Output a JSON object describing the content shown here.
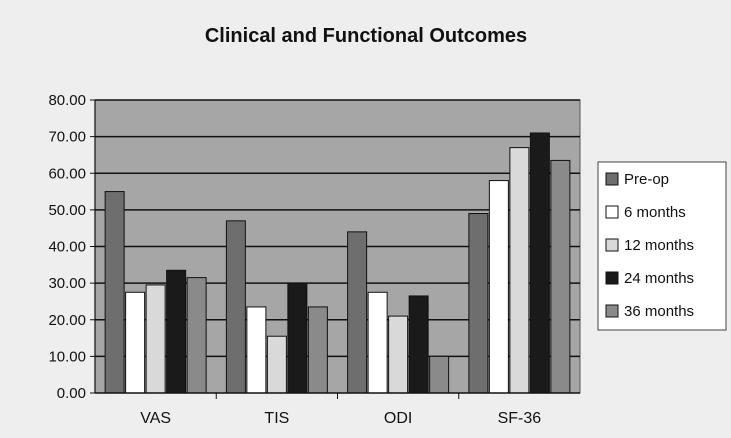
{
  "chart_data": {
    "type": "bar",
    "title": "Clinical and Functional Outcomes",
    "xlabel": "",
    "ylabel": "",
    "ylim": [
      0,
      80
    ],
    "yticks": [
      "0.00",
      "10.00",
      "20.00",
      "30.00",
      "40.00",
      "50.00",
      "60.00",
      "70.00",
      "80.00"
    ],
    "categories": [
      "VAS",
      "TIS",
      "ODI",
      "SF-36"
    ],
    "grid": true,
    "legend_position": "right",
    "series": [
      {
        "name": "Pre-op",
        "color": "#6e6e6e",
        "values": [
          55.0,
          47.0,
          44.0,
          49.0
        ]
      },
      {
        "name": "6 months",
        "color": "#ffffff",
        "values": [
          27.5,
          23.5,
          27.5,
          58.0
        ]
      },
      {
        "name": "12 months",
        "color": "#d9d9d9",
        "values": [
          29.5,
          15.5,
          21.0,
          67.0
        ]
      },
      {
        "name": "24 months",
        "color": "#1a1a1a",
        "values": [
          33.5,
          30.0,
          26.5,
          71.0
        ]
      },
      {
        "name": "36 months",
        "color": "#8a8a8a",
        "values": [
          31.5,
          23.5,
          10.0,
          63.5
        ]
      }
    ],
    "plot_background": "#a6a6a6",
    "page_background": "#eeeeee"
  }
}
